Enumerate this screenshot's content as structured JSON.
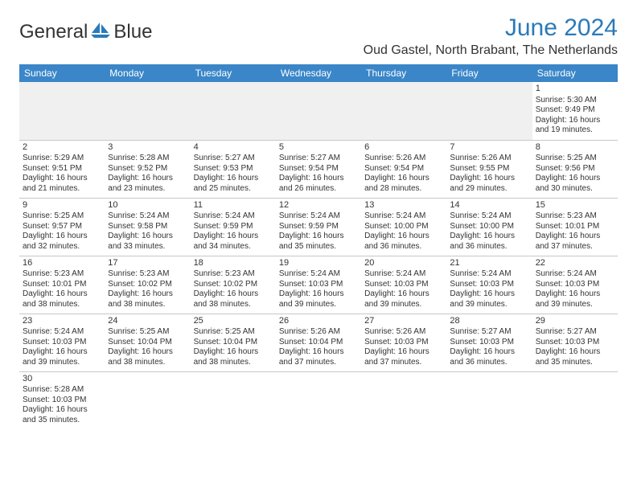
{
  "header": {
    "logo_general": "General",
    "logo_blue": "Blue",
    "month_title": "June 2024",
    "location": "Oud Gastel, North Brabant, The Netherlands"
  },
  "colors": {
    "header_bg": "#3a86c8",
    "accent": "#2a7ab9",
    "grid_line": "#c8c8c8",
    "text": "#333333",
    "empty_bg": "#f0f0f0"
  },
  "dow": [
    "Sunday",
    "Monday",
    "Tuesday",
    "Wednesday",
    "Thursday",
    "Friday",
    "Saturday"
  ],
  "weeks": [
    [
      null,
      null,
      null,
      null,
      null,
      null,
      {
        "n": "1",
        "sr": "Sunrise: 5:30 AM",
        "ss": "Sunset: 9:49 PM",
        "d1": "Daylight: 16 hours",
        "d2": "and 19 minutes."
      }
    ],
    [
      {
        "n": "2",
        "sr": "Sunrise: 5:29 AM",
        "ss": "Sunset: 9:51 PM",
        "d1": "Daylight: 16 hours",
        "d2": "and 21 minutes."
      },
      {
        "n": "3",
        "sr": "Sunrise: 5:28 AM",
        "ss": "Sunset: 9:52 PM",
        "d1": "Daylight: 16 hours",
        "d2": "and 23 minutes."
      },
      {
        "n": "4",
        "sr": "Sunrise: 5:27 AM",
        "ss": "Sunset: 9:53 PM",
        "d1": "Daylight: 16 hours",
        "d2": "and 25 minutes."
      },
      {
        "n": "5",
        "sr": "Sunrise: 5:27 AM",
        "ss": "Sunset: 9:54 PM",
        "d1": "Daylight: 16 hours",
        "d2": "and 26 minutes."
      },
      {
        "n": "6",
        "sr": "Sunrise: 5:26 AM",
        "ss": "Sunset: 9:54 PM",
        "d1": "Daylight: 16 hours",
        "d2": "and 28 minutes."
      },
      {
        "n": "7",
        "sr": "Sunrise: 5:26 AM",
        "ss": "Sunset: 9:55 PM",
        "d1": "Daylight: 16 hours",
        "d2": "and 29 minutes."
      },
      {
        "n": "8",
        "sr": "Sunrise: 5:25 AM",
        "ss": "Sunset: 9:56 PM",
        "d1": "Daylight: 16 hours",
        "d2": "and 30 minutes."
      }
    ],
    [
      {
        "n": "9",
        "sr": "Sunrise: 5:25 AM",
        "ss": "Sunset: 9:57 PM",
        "d1": "Daylight: 16 hours",
        "d2": "and 32 minutes."
      },
      {
        "n": "10",
        "sr": "Sunrise: 5:24 AM",
        "ss": "Sunset: 9:58 PM",
        "d1": "Daylight: 16 hours",
        "d2": "and 33 minutes."
      },
      {
        "n": "11",
        "sr": "Sunrise: 5:24 AM",
        "ss": "Sunset: 9:59 PM",
        "d1": "Daylight: 16 hours",
        "d2": "and 34 minutes."
      },
      {
        "n": "12",
        "sr": "Sunrise: 5:24 AM",
        "ss": "Sunset: 9:59 PM",
        "d1": "Daylight: 16 hours",
        "d2": "and 35 minutes."
      },
      {
        "n": "13",
        "sr": "Sunrise: 5:24 AM",
        "ss": "Sunset: 10:00 PM",
        "d1": "Daylight: 16 hours",
        "d2": "and 36 minutes."
      },
      {
        "n": "14",
        "sr": "Sunrise: 5:24 AM",
        "ss": "Sunset: 10:00 PM",
        "d1": "Daylight: 16 hours",
        "d2": "and 36 minutes."
      },
      {
        "n": "15",
        "sr": "Sunrise: 5:23 AM",
        "ss": "Sunset: 10:01 PM",
        "d1": "Daylight: 16 hours",
        "d2": "and 37 minutes."
      }
    ],
    [
      {
        "n": "16",
        "sr": "Sunrise: 5:23 AM",
        "ss": "Sunset: 10:01 PM",
        "d1": "Daylight: 16 hours",
        "d2": "and 38 minutes."
      },
      {
        "n": "17",
        "sr": "Sunrise: 5:23 AM",
        "ss": "Sunset: 10:02 PM",
        "d1": "Daylight: 16 hours",
        "d2": "and 38 minutes."
      },
      {
        "n": "18",
        "sr": "Sunrise: 5:23 AM",
        "ss": "Sunset: 10:02 PM",
        "d1": "Daylight: 16 hours",
        "d2": "and 38 minutes."
      },
      {
        "n": "19",
        "sr": "Sunrise: 5:24 AM",
        "ss": "Sunset: 10:03 PM",
        "d1": "Daylight: 16 hours",
        "d2": "and 39 minutes."
      },
      {
        "n": "20",
        "sr": "Sunrise: 5:24 AM",
        "ss": "Sunset: 10:03 PM",
        "d1": "Daylight: 16 hours",
        "d2": "and 39 minutes."
      },
      {
        "n": "21",
        "sr": "Sunrise: 5:24 AM",
        "ss": "Sunset: 10:03 PM",
        "d1": "Daylight: 16 hours",
        "d2": "and 39 minutes."
      },
      {
        "n": "22",
        "sr": "Sunrise: 5:24 AM",
        "ss": "Sunset: 10:03 PM",
        "d1": "Daylight: 16 hours",
        "d2": "and 39 minutes."
      }
    ],
    [
      {
        "n": "23",
        "sr": "Sunrise: 5:24 AM",
        "ss": "Sunset: 10:03 PM",
        "d1": "Daylight: 16 hours",
        "d2": "and 39 minutes."
      },
      {
        "n": "24",
        "sr": "Sunrise: 5:25 AM",
        "ss": "Sunset: 10:04 PM",
        "d1": "Daylight: 16 hours",
        "d2": "and 38 minutes."
      },
      {
        "n": "25",
        "sr": "Sunrise: 5:25 AM",
        "ss": "Sunset: 10:04 PM",
        "d1": "Daylight: 16 hours",
        "d2": "and 38 minutes."
      },
      {
        "n": "26",
        "sr": "Sunrise: 5:26 AM",
        "ss": "Sunset: 10:04 PM",
        "d1": "Daylight: 16 hours",
        "d2": "and 37 minutes."
      },
      {
        "n": "27",
        "sr": "Sunrise: 5:26 AM",
        "ss": "Sunset: 10:03 PM",
        "d1": "Daylight: 16 hours",
        "d2": "and 37 minutes."
      },
      {
        "n": "28",
        "sr": "Sunrise: 5:27 AM",
        "ss": "Sunset: 10:03 PM",
        "d1": "Daylight: 16 hours",
        "d2": "and 36 minutes."
      },
      {
        "n": "29",
        "sr": "Sunrise: 5:27 AM",
        "ss": "Sunset: 10:03 PM",
        "d1": "Daylight: 16 hours",
        "d2": "and 35 minutes."
      }
    ],
    [
      {
        "n": "30",
        "sr": "Sunrise: 5:28 AM",
        "ss": "Sunset: 10:03 PM",
        "d1": "Daylight: 16 hours",
        "d2": "and 35 minutes."
      },
      null,
      null,
      null,
      null,
      null,
      null
    ]
  ]
}
